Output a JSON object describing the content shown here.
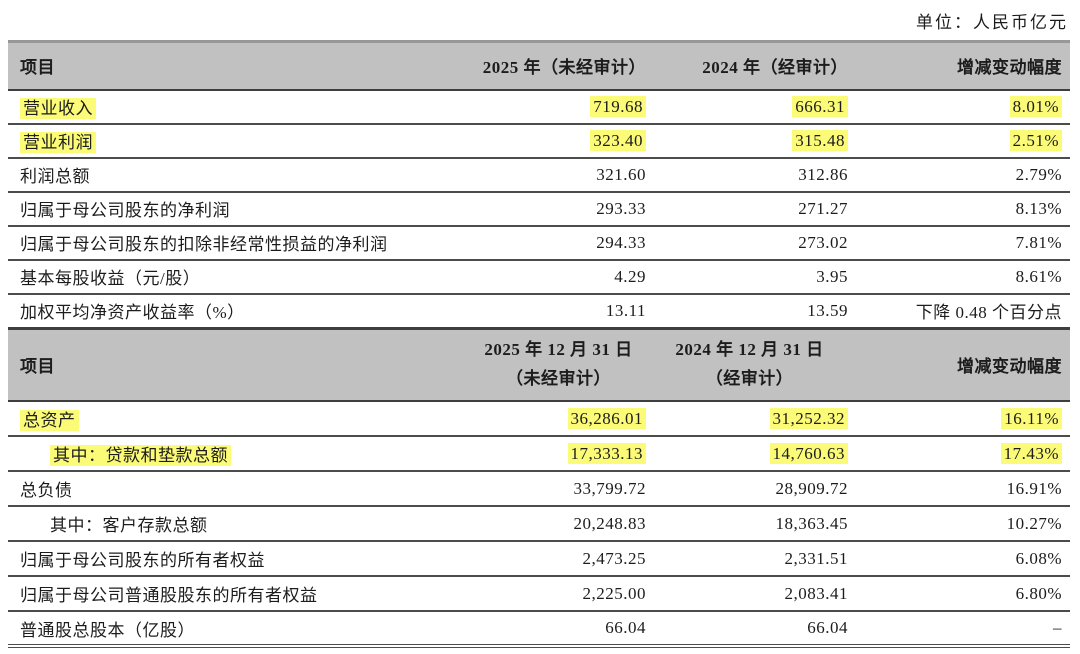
{
  "unit_label": "单位：人民币亿元",
  "colors": {
    "highlight": "#fbfb77",
    "header_background": "#c1c1c1",
    "border": "#4c4c4c",
    "text": "#1c1c1c"
  },
  "income_table": {
    "headers": {
      "item": "项目",
      "col_2025": "2025 年（未经审计）",
      "col_2024": "2024 年（经审计）",
      "change": "增减变动幅度"
    },
    "rows": [
      {
        "label": "营业收入",
        "v2025": "719.68",
        "v2024": "666.31",
        "change": "8.01%",
        "highlight": true,
        "indent": false
      },
      {
        "label": "营业利润",
        "v2025": "323.40",
        "v2024": "315.48",
        "change": "2.51%",
        "highlight": true,
        "indent": false
      },
      {
        "label": "利润总额",
        "v2025": "321.60",
        "v2024": "312.86",
        "change": "2.79%",
        "highlight": false,
        "indent": false
      },
      {
        "label": "归属于母公司股东的净利润",
        "v2025": "293.33",
        "v2024": "271.27",
        "change": "8.13%",
        "highlight": false,
        "indent": false
      },
      {
        "label": "归属于母公司股东的扣除非经常性损益的净利润",
        "v2025": "294.33",
        "v2024": "273.02",
        "change": "7.81%",
        "highlight": false,
        "indent": false
      },
      {
        "label": "基本每股收益（元/股）",
        "v2025": "4.29",
        "v2024": "3.95",
        "change": "8.61%",
        "highlight": false,
        "indent": false
      },
      {
        "label": "加权平均净资产收益率（%）",
        "v2025": "13.11",
        "v2024": "13.59",
        "change": "下降 0.48 个百分点",
        "highlight": false,
        "indent": false
      }
    ]
  },
  "balance_table": {
    "headers": {
      "item": "项目",
      "col_2025_line1": "2025 年 12 月 31 日",
      "col_2025_line2": "（未经审计）",
      "col_2024_line1": "2024 年 12 月 31 日",
      "col_2024_line2": "（经审计）",
      "change": "增减变动幅度"
    },
    "rows": [
      {
        "label": "总资产",
        "v2025": "36,286.01",
        "v2024": "31,252.32",
        "change": "16.11%",
        "highlight": true,
        "indent": false
      },
      {
        "label": "其中：贷款和垫款总额",
        "v2025": "17,333.13",
        "v2024": "14,760.63",
        "change": "17.43%",
        "highlight": true,
        "indent": true
      },
      {
        "label": "总负债",
        "v2025": "33,799.72",
        "v2024": "28,909.72",
        "change": "16.91%",
        "highlight": false,
        "indent": false
      },
      {
        "label": "其中：客户存款总额",
        "v2025": "20,248.83",
        "v2024": "18,363.45",
        "change": "10.27%",
        "highlight": false,
        "indent": true
      },
      {
        "label": "归属于母公司股东的所有者权益",
        "v2025": "2,473.25",
        "v2024": "2,331.51",
        "change": "6.08%",
        "highlight": false,
        "indent": false
      },
      {
        "label": "归属于母公司普通股股东的所有者权益",
        "v2025": "2,225.00",
        "v2024": "2,083.41",
        "change": "6.80%",
        "highlight": false,
        "indent": false
      },
      {
        "label": "普通股总股本（亿股）",
        "v2025": "66.04",
        "v2024": "66.04",
        "change": "–",
        "highlight": false,
        "indent": false
      }
    ]
  }
}
